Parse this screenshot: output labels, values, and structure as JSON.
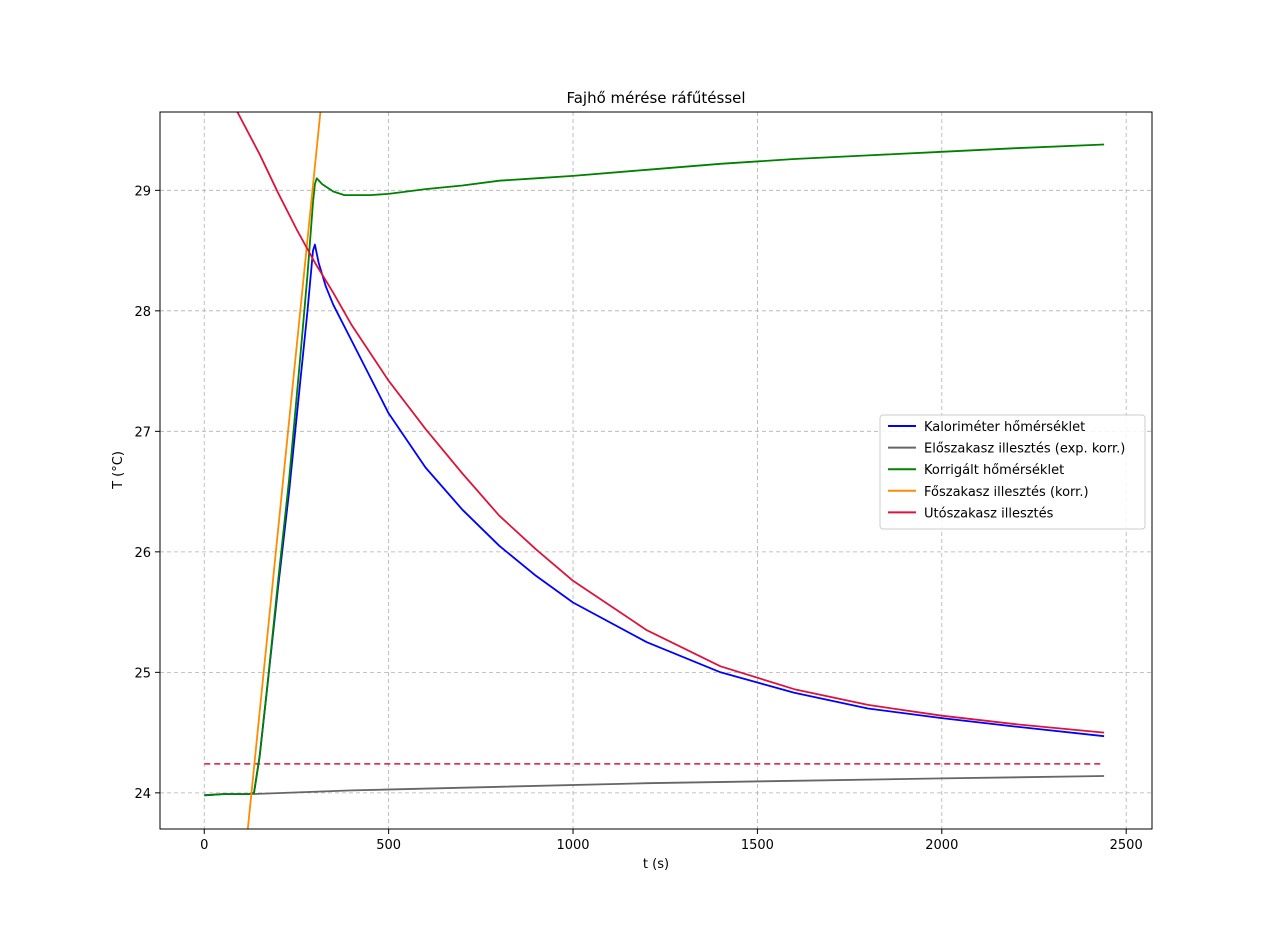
{
  "chart_data": {
    "type": "line",
    "title": "Fajhő mérése ráfűtéssel",
    "xlabel": "t (s)",
    "ylabel": "T (°C)",
    "xlim": [
      -120,
      2570
    ],
    "ylim": [
      23.7,
      29.65
    ],
    "xticks": [
      0,
      500,
      1000,
      1500,
      2000,
      2500
    ],
    "yticks": [
      24,
      25,
      26,
      27,
      28,
      29
    ],
    "grid": true,
    "legend_position": "center-right",
    "series": [
      {
        "name": "Kaloriméter hőmérséklet",
        "color": "#0000ff",
        "x": [
          0,
          50,
          100,
          120,
          135,
          150,
          170,
          200,
          230,
          260,
          280,
          295,
          300,
          310,
          330,
          350,
          400,
          450,
          500,
          600,
          700,
          800,
          900,
          1000,
          1200,
          1400,
          1600,
          1800,
          2000,
          2200,
          2440
        ],
        "y": [
          23.98,
          23.99,
          23.99,
          23.99,
          24.0,
          24.3,
          24.85,
          25.7,
          26.5,
          27.4,
          28.0,
          28.5,
          28.55,
          28.4,
          28.2,
          28.05,
          27.75,
          27.45,
          27.15,
          26.7,
          26.35,
          26.05,
          25.8,
          25.58,
          25.25,
          25.0,
          24.83,
          24.7,
          24.62,
          24.55,
          24.47
        ]
      },
      {
        "name": "Előszakasz illesztés (exp. korr.)",
        "color": "#666666",
        "x": [
          125,
          400,
          800,
          1200,
          1600,
          2000,
          2440
        ],
        "y": [
          23.99,
          24.02,
          24.05,
          24.08,
          24.1,
          24.12,
          24.14
        ]
      },
      {
        "name": "Korrigált hőmérséklet",
        "color": "#008000",
        "x": [
          0,
          50,
          100,
          120,
          135,
          150,
          170,
          200,
          230,
          260,
          280,
          295,
          300,
          305,
          320,
          350,
          380,
          400,
          450,
          500,
          600,
          700,
          800,
          900,
          1000,
          1200,
          1400,
          1600,
          1800,
          2000,
          2200,
          2440
        ],
        "y": [
          23.98,
          23.99,
          23.99,
          23.99,
          24.0,
          24.3,
          24.85,
          25.75,
          26.6,
          27.6,
          28.3,
          28.9,
          29.05,
          29.1,
          29.05,
          28.99,
          28.96,
          28.96,
          28.96,
          28.97,
          29.01,
          29.04,
          29.08,
          29.1,
          29.12,
          29.17,
          29.22,
          29.26,
          29.29,
          29.32,
          29.35,
          29.38
        ]
      },
      {
        "name": "Főszakasz illesztés (korr.)",
        "color": "#ff8c00",
        "x": [
          118,
          315
        ],
        "y": [
          23.7,
          29.65
        ]
      },
      {
        "name": "Utószakasz illesztés",
        "color": "#dc143c",
        "x": [
          90,
          150,
          200,
          250,
          300,
          350,
          400,
          500,
          600,
          700,
          800,
          900,
          1000,
          1200,
          1400,
          1600,
          1800,
          2000,
          2200,
          2440
        ],
        "y": [
          29.65,
          29.3,
          28.98,
          28.68,
          28.4,
          28.15,
          27.88,
          27.42,
          27.02,
          26.65,
          26.3,
          26.02,
          25.76,
          25.35,
          25.05,
          24.86,
          24.73,
          24.64,
          24.57,
          24.5
        ]
      }
    ],
    "reference_line": {
      "style": "dashed",
      "color": "#dc143c",
      "y": 24.24,
      "x": [
        0,
        2440
      ]
    }
  }
}
